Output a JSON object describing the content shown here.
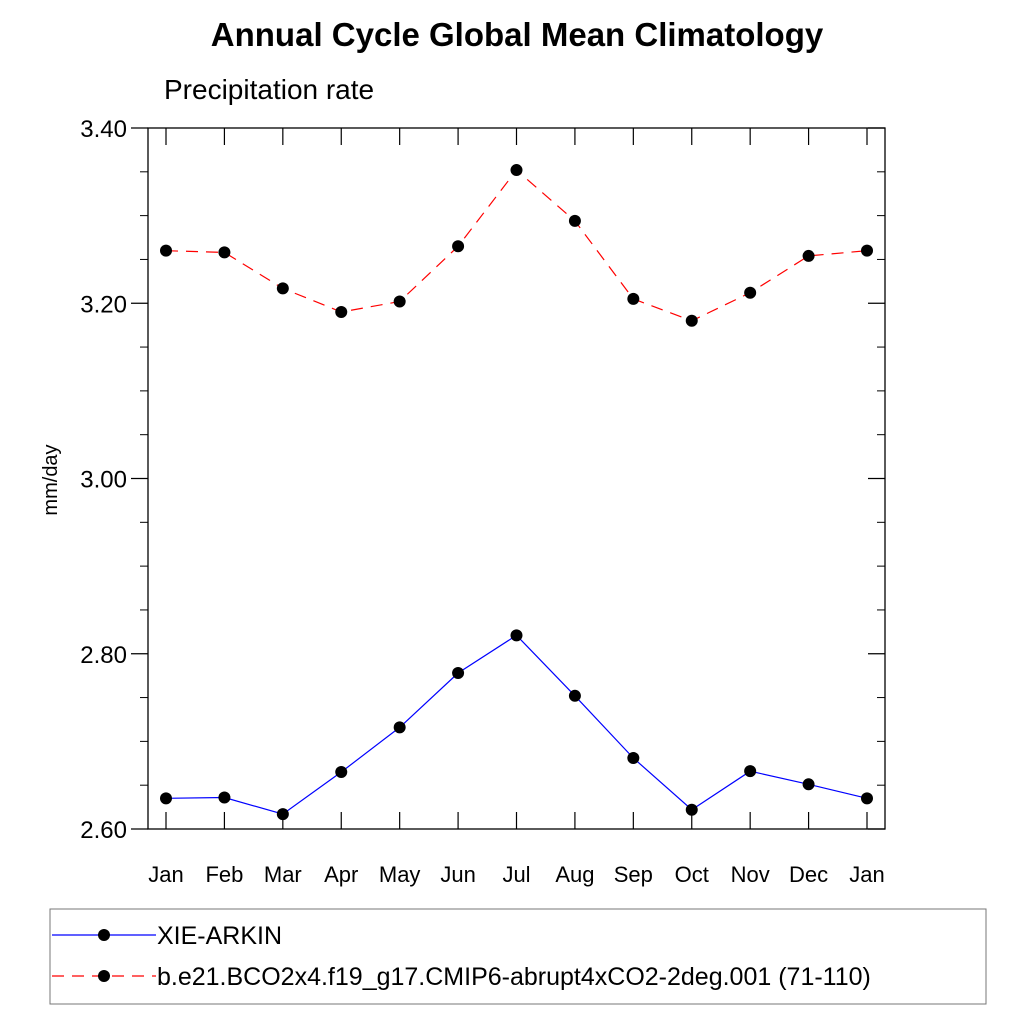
{
  "chart_data": {
    "type": "line",
    "title": "Annual Cycle Global Mean Climatology",
    "subtitle": "Precipitation rate",
    "xlabel": "",
    "ylabel": "mm/day",
    "categories": [
      "Jan",
      "Feb",
      "Mar",
      "Apr",
      "May",
      "Jun",
      "Jul",
      "Aug",
      "Sep",
      "Oct",
      "Nov",
      "Dec",
      "Jan"
    ],
    "ylim": [
      2.6,
      3.4
    ],
    "yticks": [
      "2.60",
      "2.80",
      "3.00",
      "3.20",
      "3.40"
    ],
    "grid": false,
    "legend_position": "bottom",
    "series": [
      {
        "name": "XIE-ARKIN",
        "color": "#0000ff",
        "dash": "solid",
        "values": [
          2.635,
          2.636,
          2.617,
          2.665,
          2.716,
          2.778,
          2.821,
          2.752,
          2.681,
          2.622,
          2.666,
          2.651,
          2.635
        ]
      },
      {
        "name": "b.e21.BCO2x4.f19_g17.CMIP6-abrupt4xCO2-2deg.001 (71-110)",
        "color": "#ff0000",
        "dash": "dashed",
        "values": [
          3.26,
          3.258,
          3.217,
          3.19,
          3.202,
          3.265,
          3.352,
          3.294,
          3.205,
          3.18,
          3.212,
          3.254,
          3.26
        ]
      }
    ]
  }
}
